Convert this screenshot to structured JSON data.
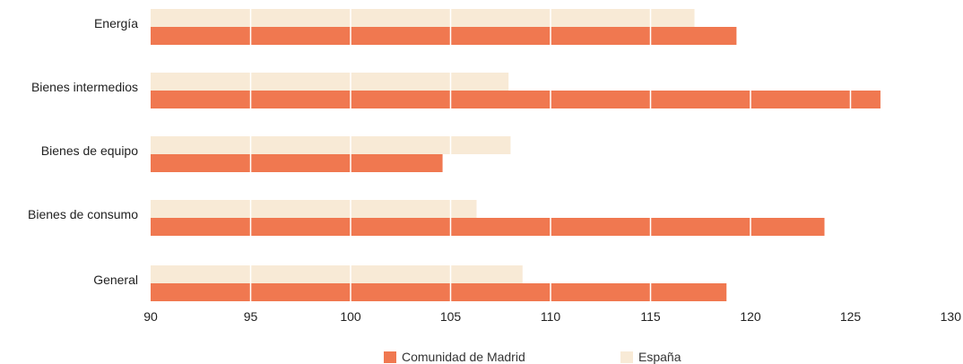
{
  "chart_data": {
    "type": "bar",
    "orientation": "horizontal",
    "categories": [
      "Energía",
      "Bienes intermedios",
      "Bienes de equipo",
      "Bienes de consumo",
      "General"
    ],
    "series": [
      {
        "name": "España",
        "values": [
          117.2,
          107.9,
          108.0,
          106.3,
          108.6
        ],
        "color": "#f8ead6"
      },
      {
        "name": "Comunidad de Madrid",
        "values": [
          119.3,
          126.5,
          104.6,
          123.7,
          118.8
        ],
        "color": "#f07850"
      }
    ],
    "xlim": [
      90,
      130
    ],
    "xticks": [
      "90",
      "95",
      "100",
      "105",
      "110",
      "115",
      "120",
      "125",
      "130"
    ],
    "grid": "vertical-white",
    "legend_position": "bottom"
  }
}
